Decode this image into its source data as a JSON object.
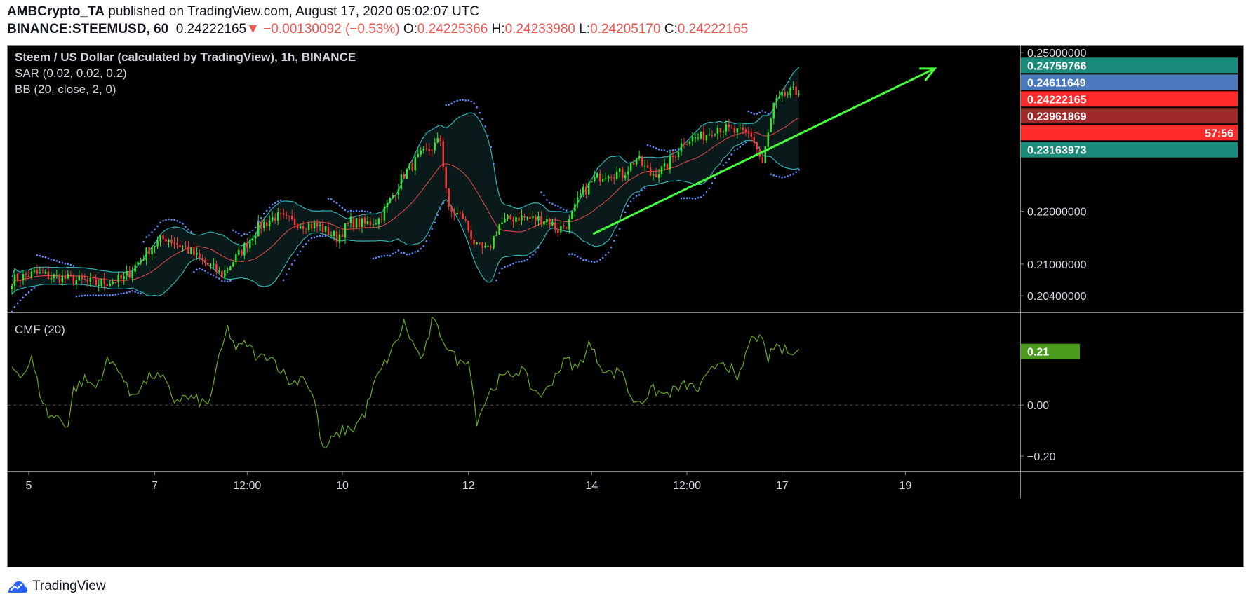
{
  "header": {
    "author": "AMBCrypto_TA",
    "published": " published on TradingView.com, August 17, 2020 05:02:07 UTC",
    "symbol": "BINANCE:STEEMUSD, 60",
    "last": "0.24222165",
    "change": "▼ −0.00130092 (−0.53%)",
    "o_label": "O:",
    "o": "0.24225366",
    "h_label": "H:",
    "h": "0.24233980",
    "l_label": "L:",
    "l": "0.24205170",
    "c_label": "C:",
    "c": "0.24222165"
  },
  "legend": {
    "title": "Steem / US Dollar (calculated by TradingView), 1h, BINANCE",
    "sar": "SAR (0.02, 0.02, 0.2)",
    "bb": "BB (20, close, 2, 0)",
    "cmf": "CMF (20)"
  },
  "price_axis": {
    "ticks": [
      {
        "label": "0.25000000",
        "value": 0.25
      },
      {
        "label": "0.22000000",
        "value": 0.22
      },
      {
        "label": "0.21000000",
        "value": 0.21
      },
      {
        "label": "0.20400000",
        "value": 0.204
      }
    ],
    "tags": [
      {
        "label": "0.24759766",
        "value": 0.24759766,
        "color": "#1a8b7a"
      },
      {
        "label": "0.24611649",
        "value": 0.24611649,
        "color": "#4a79bd"
      },
      {
        "label": "0.24222165",
        "value": 0.24222165,
        "color": "#ff2a2a"
      },
      {
        "label": "57:56",
        "value": 0.23892,
        "color": "#ff2a2a"
      },
      {
        "label": "0.23961869",
        "value": 0.23961869,
        "color": "#a02828"
      },
      {
        "label": "0.23163973",
        "value": 0.23163973,
        "color": "#1a8b7a"
      }
    ]
  },
  "cmf_axis": {
    "ticks": [
      {
        "label": "0.00",
        "value": 0.0
      },
      {
        "label": "−0.20",
        "value": -0.2
      }
    ],
    "tag": {
      "label": "0.21",
      "value": 0.21,
      "color": "#4a9a1e"
    }
  },
  "time_axis": {
    "labels": [
      {
        "label": "5",
        "bar": 6
      },
      {
        "label": "7",
        "bar": 51
      },
      {
        "label": "12:00",
        "bar": 84
      },
      {
        "label": "10",
        "bar": 118
      },
      {
        "label": "12",
        "bar": 163
      },
      {
        "label": "14",
        "bar": 207
      },
      {
        "label": "12:00",
        "bar": 241
      },
      {
        "label": "17",
        "bar": 275
      },
      {
        "label": "19",
        "bar": 319
      }
    ]
  },
  "footer": {
    "brand": "TradingView"
  },
  "colors": {
    "up": "#35e62a",
    "down": "#ff3535",
    "bb": "#2fb1b3",
    "basis": "#d94545",
    "sar": "#5b8cff",
    "cmf": "#66aa22",
    "trend": "#45ff3a"
  },
  "chart_data": [
    {
      "type": "candlestick",
      "title": "Steem / US Dollar (calculated by TradingView), 1h, BINANCE",
      "price_range": [
        0.20085,
        0.25135
      ],
      "x_range": [
        -1.5,
        360
      ],
      "anchors": [
        [
          0,
          0.207
        ],
        [
          8,
          0.2082
        ],
        [
          20,
          0.2072
        ],
        [
          30,
          0.2063
        ],
        [
          40,
          0.2072
        ],
        [
          50,
          0.2135
        ],
        [
          55,
          0.215
        ],
        [
          62,
          0.213
        ],
        [
          68,
          0.2105
        ],
        [
          75,
          0.208
        ],
        [
          82,
          0.2125
        ],
        [
          88,
          0.217
        ],
        [
          94,
          0.219
        ],
        [
          100,
          0.218
        ],
        [
          110,
          0.217
        ],
        [
          116,
          0.215
        ],
        [
          121,
          0.218
        ],
        [
          126,
          0.2175
        ],
        [
          131,
          0.2185
        ],
        [
          135,
          0.222
        ],
        [
          140,
          0.227
        ],
        [
          145,
          0.23
        ],
        [
          150,
          0.232
        ],
        [
          153,
          0.2335
        ],
        [
          156,
          0.22
        ],
        [
          161,
          0.219
        ],
        [
          166,
          0.213
        ],
        [
          170,
          0.2125
        ],
        [
          174,
          0.2175
        ],
        [
          180,
          0.219
        ],
        [
          186,
          0.2185
        ],
        [
          191,
          0.2185
        ],
        [
          195,
          0.2165
        ],
        [
          199,
          0.218
        ],
        [
          203,
          0.223
        ],
        [
          208,
          0.226
        ],
        [
          213,
          0.2275
        ],
        [
          218,
          0.227
        ],
        [
          223,
          0.23
        ],
        [
          228,
          0.227
        ],
        [
          233,
          0.228
        ],
        [
          237,
          0.231
        ],
        [
          240,
          0.2335
        ],
        [
          246,
          0.234
        ],
        [
          252,
          0.236
        ],
        [
          258,
          0.235
        ],
        [
          264,
          0.2345
        ],
        [
          268,
          0.229
        ],
        [
          272,
          0.24
        ],
        [
          276,
          0.242
        ],
        [
          279,
          0.2425
        ],
        [
          281,
          0.2422
        ]
      ],
      "sar_segments": [
        {
          "from": 0,
          "to": 8,
          "side": "below",
          "gap": 0.003
        },
        {
          "from": 9,
          "to": 22,
          "side": "above",
          "gap": 0.002
        },
        {
          "from": 23,
          "to": 46,
          "side": "below",
          "gap": 0.002
        },
        {
          "from": 47,
          "to": 64,
          "side": "above",
          "gap": 0.003
        },
        {
          "from": 65,
          "to": 78,
          "side": "below",
          "gap": 0.002
        },
        {
          "from": 79,
          "to": 96,
          "side": "above",
          "gap": 0.002
        },
        {
          "from": 97,
          "to": 112,
          "side": "below",
          "gap": 0.002
        },
        {
          "from": 113,
          "to": 128,
          "side": "above",
          "gap": 0.002
        },
        {
          "from": 129,
          "to": 154,
          "side": "below",
          "gap": 0.003
        },
        {
          "from": 155,
          "to": 172,
          "side": "above",
          "gap": 0.004
        },
        {
          "from": 173,
          "to": 188,
          "side": "below",
          "gap": 0.002
        },
        {
          "from": 189,
          "to": 198,
          "side": "above",
          "gap": 0.002
        },
        {
          "from": 199,
          "to": 226,
          "side": "below",
          "gap": 0.004
        },
        {
          "from": 227,
          "to": 238,
          "side": "above",
          "gap": 0.002
        },
        {
          "from": 239,
          "to": 262,
          "side": "below",
          "gap": 0.003
        },
        {
          "from": 263,
          "to": 270,
          "side": "above",
          "gap": 0.002
        },
        {
          "from": 271,
          "to": 281,
          "side": "below",
          "gap": 0.003
        }
      ],
      "trendline": {
        "from": [
          207.5,
          0.2157
        ],
        "to": [
          329.5,
          0.247
        ]
      }
    },
    {
      "type": "line",
      "title": "CMF (20)",
      "y_range": [
        -0.26,
        0.36
      ],
      "x_range": [
        -1.5,
        360
      ],
      "anchors": [
        [
          0,
          0.15
        ],
        [
          4,
          0.12
        ],
        [
          7,
          0.18
        ],
        [
          10,
          0.05
        ],
        [
          13,
          -0.04
        ],
        [
          17,
          -0.05
        ],
        [
          20,
          -0.08
        ],
        [
          22,
          0.06
        ],
        [
          26,
          0.1
        ],
        [
          30,
          0.07
        ],
        [
          34,
          0.17
        ],
        [
          38,
          0.15
        ],
        [
          42,
          0.04
        ],
        [
          46,
          0.07
        ],
        [
          50,
          0.12
        ],
        [
          54,
          0.1
        ],
        [
          58,
          0.02
        ],
        [
          62,
          0.03
        ],
        [
          66,
          0.02
        ],
        [
          70,
          0.0
        ],
        [
          74,
          0.18
        ],
        [
          77,
          0.3
        ],
        [
          80,
          0.22
        ],
        [
          84,
          0.24
        ],
        [
          88,
          0.18
        ],
        [
          92,
          0.2
        ],
        [
          96,
          0.14
        ],
        [
          100,
          0.08
        ],
        [
          104,
          0.12
        ],
        [
          108,
          0.02
        ],
        [
          111,
          -0.18
        ],
        [
          114,
          -0.14
        ],
        [
          118,
          -0.1
        ],
        [
          122,
          -0.09
        ],
        [
          126,
          -0.03
        ],
        [
          130,
          0.1
        ],
        [
          134,
          0.18
        ],
        [
          137,
          0.24
        ],
        [
          140,
          0.32
        ],
        [
          144,
          0.22
        ],
        [
          147,
          0.18
        ],
        [
          150,
          0.33
        ],
        [
          153,
          0.28
        ],
        [
          156,
          0.22
        ],
        [
          160,
          0.16
        ],
        [
          163,
          0.19
        ],
        [
          166,
          -0.06
        ],
        [
          170,
          0.04
        ],
        [
          174,
          0.1
        ],
        [
          178,
          0.12
        ],
        [
          182,
          0.14
        ],
        [
          186,
          0.06
        ],
        [
          190,
          0.04
        ],
        [
          194,
          0.12
        ],
        [
          198,
          0.18
        ],
        [
          202,
          0.14
        ],
        [
          206,
          0.24
        ],
        [
          210,
          0.16
        ],
        [
          214,
          0.12
        ],
        [
          218,
          0.14
        ],
        [
          221,
          0.02
        ],
        [
          225,
          0.02
        ],
        [
          229,
          0.06
        ],
        [
          233,
          0.04
        ],
        [
          237,
          0.06
        ],
        [
          241,
          0.08
        ],
        [
          245,
          0.06
        ],
        [
          249,
          0.12
        ],
        [
          253,
          0.18
        ],
        [
          257,
          0.14
        ],
        [
          259,
          0.08
        ],
        [
          262,
          0.2
        ],
        [
          265,
          0.28
        ],
        [
          268,
          0.24
        ],
        [
          270,
          0.18
        ],
        [
          273,
          0.24
        ],
        [
          275,
          0.21
        ],
        [
          278,
          0.22
        ],
        [
          281,
          0.21
        ]
      ]
    }
  ]
}
